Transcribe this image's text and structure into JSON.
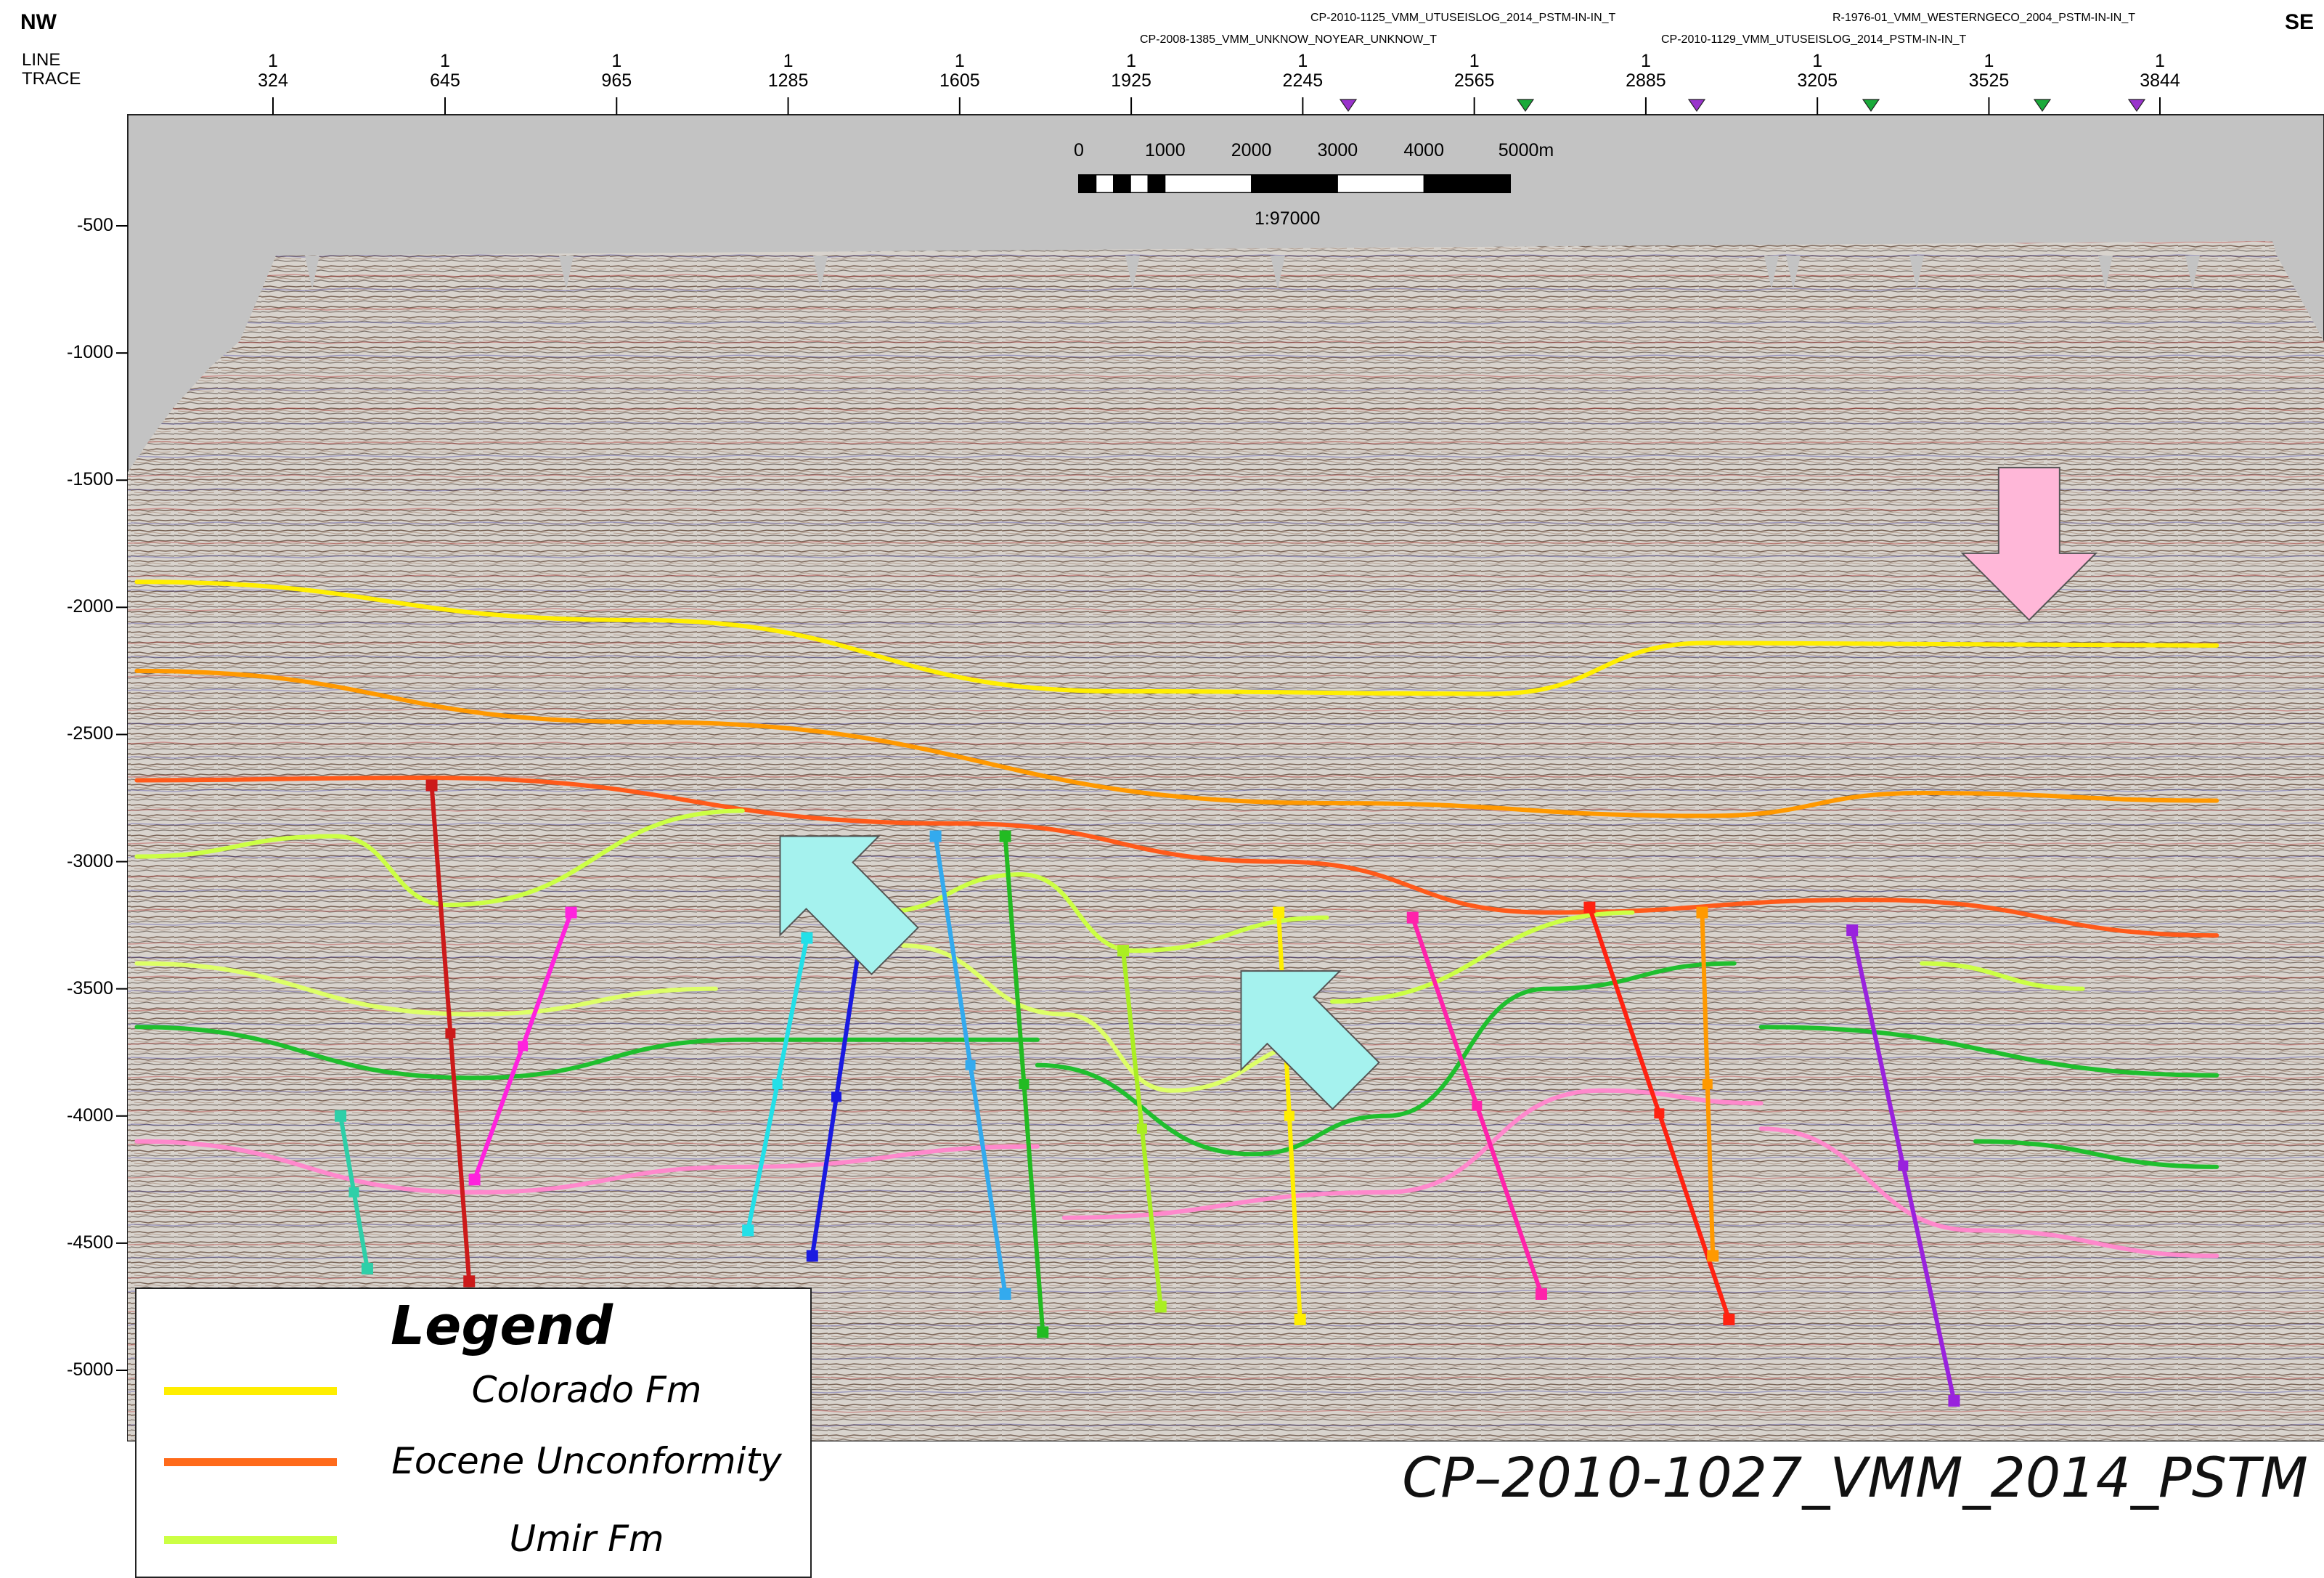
{
  "header": {
    "left_direction": "NW",
    "right_direction": "SE",
    "axis_caption_line": "LINE",
    "axis_caption_trace": "TRACE",
    "line_value": "1",
    "trace_ticks": [
      "324",
      "645",
      "965",
      "1285",
      "1605",
      "1925",
      "2245",
      "2565",
      "2885",
      "3205",
      "3525",
      "3844"
    ],
    "intersecting_lines_top": [
      "CP-2010-1125_VMM_UTUSEISLOG_2014_PSTM-IN-IN_T",
      "R-1976-01_VMM_WESTERNGECO_2004_PSTM-IN-IN_T"
    ],
    "intersecting_lines_bottom": [
      "CP-2008-1385_VMM_UNKNOW_NOYEAR_UNKNOW_T",
      "CP-2010-1129_VMM_UTUSEISLOG_2014_PSTM-IN-IN_T"
    ],
    "markers": [
      {
        "trace": 2330,
        "color": "#9933cc"
      },
      {
        "trace": 2660,
        "color": "#1aaa3a"
      },
      {
        "trace": 2980,
        "color": "#9933cc"
      },
      {
        "trace": 3305,
        "color": "#1aaa3a"
      },
      {
        "trace": 3625,
        "color": "#1aaa3a"
      },
      {
        "trace": 3800,
        "color": "#9933cc"
      }
    ]
  },
  "depth_axis": {
    "labels": [
      "-500",
      "-1000",
      "-1500",
      "-2000",
      "-2500",
      "-3000",
      "-3500",
      "-4000",
      "-4500",
      "-5000"
    ],
    "values": [
      -500,
      -1000,
      -1500,
      -2000,
      -2500,
      -3000,
      -3500,
      -4000,
      -4500,
      -5000
    ]
  },
  "scale_bar": {
    "labels": [
      "0",
      "1000",
      "2000",
      "3000",
      "4000",
      "5000m"
    ],
    "ratio": "1:97000"
  },
  "section_title": "CP–2010-1027_VMM_2014_PSTM",
  "legend": {
    "title": "Legend",
    "items": [
      {
        "label": "Colorado Fm",
        "color": "#ffee00"
      },
      {
        "label": "Eocene Unconformity",
        "color": "#ff6a1a"
      },
      {
        "label": "Umir Fm",
        "color": "#ccff44"
      }
    ]
  },
  "horizons": [
    {
      "color": "#ffee00",
      "points": [
        [
          70,
          -1900
        ],
        [
          1000,
          -2050
        ],
        [
          1900,
          -2330
        ],
        [
          2600,
          -2340
        ],
        [
          3000,
          -2140
        ],
        [
          3950,
          -2150
        ]
      ]
    },
    {
      "color": "#ff9900",
      "points": [
        [
          70,
          -2250
        ],
        [
          1000,
          -2450
        ],
        [
          2300,
          -2770
        ],
        [
          3000,
          -2820
        ],
        [
          3400,
          -2730
        ],
        [
          3950,
          -2760
        ]
      ]
    },
    {
      "color": "#ff5a1a",
      "points": [
        [
          70,
          -2680
        ],
        [
          600,
          -2670
        ],
        [
          1600,
          -2850
        ],
        [
          2200,
          -3000
        ],
        [
          2700,
          -3200
        ],
        [
          3300,
          -3150
        ],
        [
          3950,
          -3290
        ]
      ]
    },
    {
      "color": "#ccff44",
      "points": [
        [
          70,
          -2980
        ],
        [
          440,
          -2900
        ],
        [
          650,
          -3170
        ],
        [
          1200,
          -2800
        ]
      ]
    },
    {
      "color": "#ccff44",
      "points": [
        [
          1450,
          -3200
        ],
        [
          1720,
          -3050
        ],
        [
          1930,
          -3350
        ],
        [
          2290,
          -3220
        ]
      ]
    },
    {
      "color": "#ccff44",
      "points": [
        [
          2300,
          -3550
        ],
        [
          2860,
          -3200
        ]
      ]
    },
    {
      "color": "#ccff44",
      "points": [
        [
          3400,
          -3400
        ],
        [
          3700,
          -3500
        ]
      ]
    },
    {
      "color": "#ddff66",
      "points": [
        [
          70,
          -3400
        ],
        [
          700,
          -3600
        ],
        [
          1150,
          -3500
        ]
      ]
    },
    {
      "color": "#ddff66",
      "points": [
        [
          1500,
          -3330
        ],
        [
          1800,
          -3600
        ],
        [
          2000,
          -3900
        ],
        [
          2300,
          -3700
        ]
      ]
    },
    {
      "color": "#1fbf2e",
      "points": [
        [
          70,
          -3650
        ],
        [
          700,
          -3850
        ],
        [
          1200,
          -3700
        ],
        [
          1750,
          -3700
        ]
      ]
    },
    {
      "color": "#1fbf2e",
      "points": [
        [
          1750,
          -3800
        ],
        [
          2150,
          -4150
        ],
        [
          2400,
          -4000
        ],
        [
          2700,
          -3500
        ],
        [
          3050,
          -3400
        ]
      ]
    },
    {
      "color": "#1fbf2e",
      "points": [
        [
          3100,
          -3650
        ],
        [
          3950,
          -3840
        ]
      ]
    },
    {
      "color": "#1fbf2e",
      "points": [
        [
          3500,
          -4100
        ],
        [
          3950,
          -4200
        ]
      ]
    },
    {
      "color": "#ff88cc",
      "points": [
        [
          70,
          -4100
        ],
        [
          700,
          -4300
        ],
        [
          1200,
          -4200
        ],
        [
          1750,
          -4120
        ]
      ]
    },
    {
      "color": "#ff88cc",
      "points": [
        [
          1800,
          -4400
        ],
        [
          2400,
          -4300
        ],
        [
          2800,
          -3900
        ],
        [
          3100,
          -3950
        ]
      ]
    },
    {
      "color": "#ff88cc",
      "points": [
        [
          3100,
          -4050
        ],
        [
          3500,
          -4450
        ],
        [
          3950,
          -4550
        ]
      ]
    }
  ],
  "faults": [
    {
      "color": "#2ecfa8",
      "top": [
        450,
        -4000
      ],
      "bottom": [
        500,
        -4600
      ]
    },
    {
      "color": "#cc1a1a",
      "top": [
        620,
        -2700
      ],
      "bottom": [
        690,
        -4650
      ]
    },
    {
      "color": "#ff22dd",
      "top": [
        880,
        -3200
      ],
      "bottom": [
        700,
        -4250
      ]
    },
    {
      "color": "#22e0e8",
      "top": [
        1320,
        -3300
      ],
      "bottom": [
        1210,
        -4450
      ]
    },
    {
      "color": "#1a1ae0",
      "top": [
        1420,
        -3300
      ],
      "bottom": [
        1330,
        -4550
      ]
    },
    {
      "color": "#33aaee",
      "top": [
        1560,
        -2900
      ],
      "bottom": [
        1690,
        -4700
      ]
    },
    {
      "color": "#22bb22",
      "top": [
        1690,
        -2900
      ],
      "bottom": [
        1760,
        -4850
      ]
    },
    {
      "color": "#aaee22",
      "top": [
        1910,
        -3350
      ],
      "bottom": [
        1980,
        -4750
      ]
    },
    {
      "color": "#ffee00",
      "top": [
        2200,
        -3200
      ],
      "bottom": [
        2240,
        -4800
      ]
    },
    {
      "color": "#ff22aa",
      "top": [
        2450,
        -3220
      ],
      "bottom": [
        2690,
        -4700
      ]
    },
    {
      "color": "#ff2211",
      "top": [
        2780,
        -3180
      ],
      "bottom": [
        3040,
        -4800
      ]
    },
    {
      "color": "#ff9900",
      "top": [
        2990,
        -3200
      ],
      "bottom": [
        3010,
        -4550
      ]
    },
    {
      "color": "#9922dd",
      "top": [
        3270,
        -3270
      ],
      "bottom": [
        3460,
        -5120
      ]
    }
  ],
  "arrows": [
    {
      "color": "#a5f2ee",
      "kind": "up-left",
      "tip": [
        1270,
        -2900
      ]
    },
    {
      "color": "#a5f2ee",
      "kind": "up-left",
      "tip": [
        2130,
        -3430
      ]
    },
    {
      "color": "#ffb7d8",
      "kind": "down",
      "tip": [
        3600,
        -2050
      ]
    }
  ]
}
